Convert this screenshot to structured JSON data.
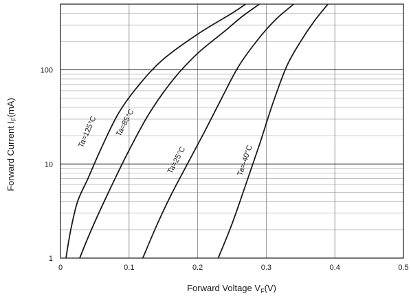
{
  "chart_data": {
    "type": "line",
    "xlabel": "Forward Voltage",
    "xlabel_symbol": "V",
    "xlabel_sub": "F",
    "xlabel_unit": "(V)",
    "ylabel": "Forward Current",
    "ylabel_symbol": "I",
    "ylabel_sub": "F",
    "ylabel_unit": "(mA)",
    "xlim": [
      0,
      0.5
    ],
    "ylim": [
      1,
      500
    ],
    "yscale": "log",
    "grid": true,
    "x_ticks": [
      {
        "value": 0,
        "label": "0"
      },
      {
        "value": 0.1,
        "label": "0.1"
      },
      {
        "value": 0.2,
        "label": "0.2"
      },
      {
        "value": 0.3,
        "label": "0.3"
      },
      {
        "value": 0.4,
        "label": "0.4"
      },
      {
        "value": 0.5,
        "label": "0.5"
      }
    ],
    "y_ticks": [
      {
        "value": 1,
        "label": "1"
      },
      {
        "value": 10,
        "label": "10"
      },
      {
        "value": 100,
        "label": "100"
      }
    ],
    "series": [
      {
        "name": "Ta=125°C",
        "color": "#1a1a1a",
        "x": [
          0.008,
          0.015,
          0.025,
          0.04,
          0.06,
          0.085,
          0.115,
          0.15,
          0.2,
          0.25,
          0.27
        ],
        "y": [
          1,
          2,
          4,
          7,
          15,
          35,
          70,
          130,
          240,
          400,
          500
        ]
      },
      {
        "name": "Ta=85°C",
        "color": "#1a1a1a",
        "x": [
          0.028,
          0.045,
          0.07,
          0.1,
          0.13,
          0.165,
          0.2,
          0.24,
          0.265,
          0.29
        ],
        "y": [
          1,
          2,
          5,
          14,
          35,
          80,
          150,
          260,
          370,
          500
        ]
      },
      {
        "name": "Ta=25°C",
        "color": "#1a1a1a",
        "x": [
          0.12,
          0.14,
          0.16,
          0.185,
          0.21,
          0.235,
          0.26,
          0.29,
          0.315,
          0.34
        ],
        "y": [
          1,
          2.2,
          4.5,
          10,
          22,
          50,
          110,
          220,
          350,
          500
        ]
      },
      {
        "name": "Ta=-40°C",
        "color": "#1a1a1a",
        "x": [
          0.23,
          0.25,
          0.27,
          0.29,
          0.31,
          0.33,
          0.35,
          0.37,
          0.39
        ],
        "y": [
          1,
          2.3,
          6,
          16,
          45,
          110,
          200,
          330,
          500
        ]
      }
    ],
    "annotations": [
      {
        "text": "Ta=125°C",
        "series": 0,
        "at_x": 0.05,
        "at_y": 20
      },
      {
        "text": "Ta=85°C",
        "series": 1,
        "at_x": 0.105,
        "at_y": 25
      },
      {
        "text": "Ta=25°C",
        "series": 2,
        "at_x": 0.18,
        "at_y": 10
      },
      {
        "text": "Ta=-40°C",
        "series": 3,
        "at_x": 0.28,
        "at_y": 10
      }
    ]
  }
}
